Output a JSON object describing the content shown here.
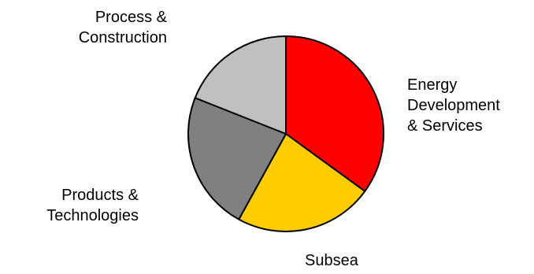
{
  "chart_data": {
    "type": "pie",
    "title": "",
    "slices": [
      {
        "label_lines": [
          "Energy",
          "Development",
          "& Services"
        ],
        "value": 35,
        "color": "#ff0000"
      },
      {
        "label_lines": [
          "Subsea"
        ],
        "value": 23,
        "color": "#ffcc00"
      },
      {
        "label_lines": [
          "Products &",
          "Technologies"
        ],
        "value": 23,
        "color": "#808080"
      },
      {
        "label_lines": [
          "Process &",
          "Construction"
        ],
        "value": 19,
        "color": "#c0c0c0"
      }
    ],
    "start_angle": "12 o'clock",
    "direction": "clockwise",
    "legend": "none",
    "label_placement": "outside"
  }
}
